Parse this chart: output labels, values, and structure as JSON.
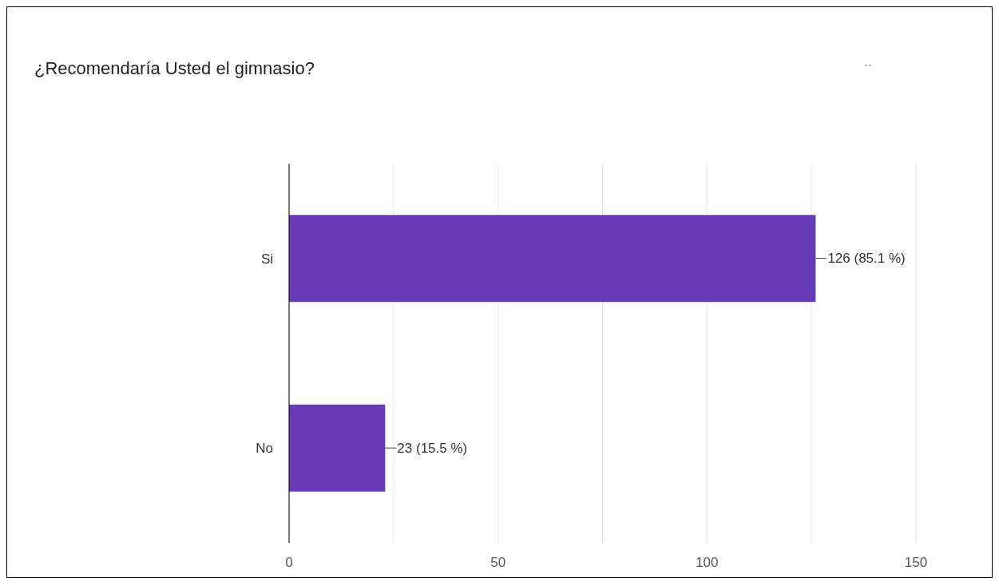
{
  "chart_data": {
    "type": "bar",
    "orientation": "horizontal",
    "title": "¿Recomendaría Usted el gimnasio?",
    "categories": [
      "Si",
      "No"
    ],
    "series": [
      {
        "color": "#673ab7",
        "values": [
          126,
          23
        ],
        "value_labels": [
          "126 (85.1 %)",
          "23 (15.5 %)"
        ]
      }
    ],
    "xlim": [
      0,
      150
    ],
    "xticks": [
      0,
      {
        "value": 25,
        "label": null
      },
      50,
      {
        "value": 75,
        "label": null
      },
      100,
      {
        "value": 125,
        "label": null
      },
      150
    ],
    "grid": "x",
    "legend": false
  }
}
